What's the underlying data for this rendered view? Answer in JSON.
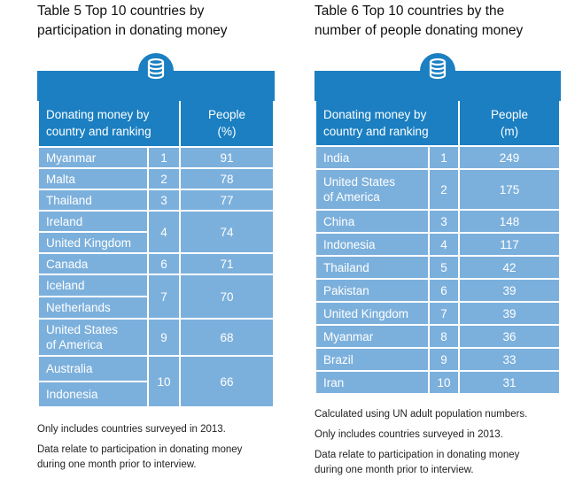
{
  "left": {
    "title_line1": "Table 5  Top 10 countries by",
    "title_line2": "participation in donating money",
    "icon": "coin-stack-icon",
    "header_col1_line1": "Donating money by",
    "header_col1_line2": "country and ranking",
    "header_col2_line1": "People",
    "header_col2_line2": "(%)",
    "rows": [
      {
        "country": "Myanmar",
        "rank": "1",
        "value": "91"
      },
      {
        "country": "Malta",
        "rank": "2",
        "value": "78"
      },
      {
        "country": "Thailand",
        "rank": "3",
        "value": "77"
      },
      {
        "country": "Ireland",
        "rank": "4",
        "value": "74"
      },
      {
        "country": "United Kingdom"
      },
      {
        "country": "Canada",
        "rank": "6",
        "value": "71"
      },
      {
        "country": "Iceland",
        "rank": "7",
        "value": "70"
      },
      {
        "country": "Netherlands"
      },
      {
        "country_line1": "United States",
        "country_line2": "of America",
        "rank": "9",
        "value": "68"
      },
      {
        "country": "Australia",
        "rank": "10",
        "value": "66"
      },
      {
        "country": "Indonesia"
      }
    ],
    "note1": "Only includes countries surveyed in 2013.",
    "note2_line1": "Data relate to participation in donating money",
    "note2_line2": "during one month prior to interview."
  },
  "right": {
    "title_line1": "Table 6  Top 10 countries by the",
    "title_line2": "number of people donating money",
    "icon": "coin-stack-icon",
    "header_col1_line1": "Donating money by",
    "header_col1_line2": "country and ranking",
    "header_col2_line1": "People",
    "header_col2_line2": "(m)",
    "rows": [
      {
        "country": "India",
        "rank": "1",
        "value": "249"
      },
      {
        "country_line1": "United States",
        "country_line2": "of America",
        "rank": "2",
        "value": "175"
      },
      {
        "country": "China",
        "rank": "3",
        "value": "148"
      },
      {
        "country": "Indonesia",
        "rank": "4",
        "value": "117"
      },
      {
        "country": "Thailand",
        "rank": "5",
        "value": "42"
      },
      {
        "country": "Pakistan",
        "rank": "6",
        "value": "39"
      },
      {
        "country": "United Kingdom",
        "rank": "7",
        "value": "39"
      },
      {
        "country": "Myanmar",
        "rank": "8",
        "value": "36"
      },
      {
        "country": "Brazil",
        "rank": "9",
        "value": "33"
      },
      {
        "country": "Iran",
        "rank": "10",
        "value": "31"
      }
    ],
    "note0": "Calculated using UN adult population numbers.",
    "note1": "Only includes countries surveyed in 2013.",
    "note2_line1": "Data relate to participation in donating money",
    "note2_line2": "during one month prior to interview."
  },
  "colors": {
    "header": "#1b7fc1",
    "cell": "#7cb0dc"
  }
}
